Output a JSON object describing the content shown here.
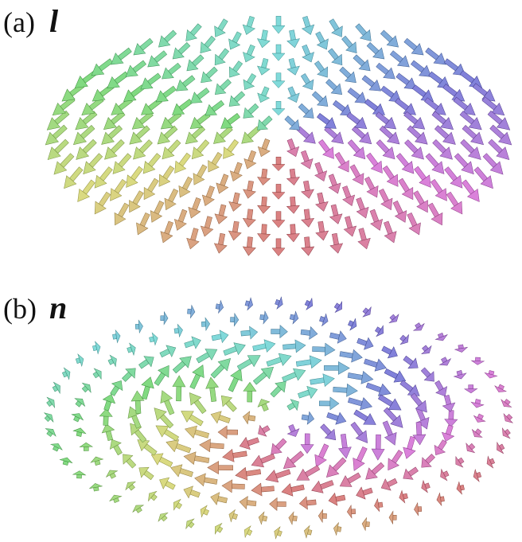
{
  "panels": [
    {
      "label": "(a)",
      "symbol": "l"
    },
    {
      "label": "(b)",
      "symbol": "n"
    }
  ]
}
